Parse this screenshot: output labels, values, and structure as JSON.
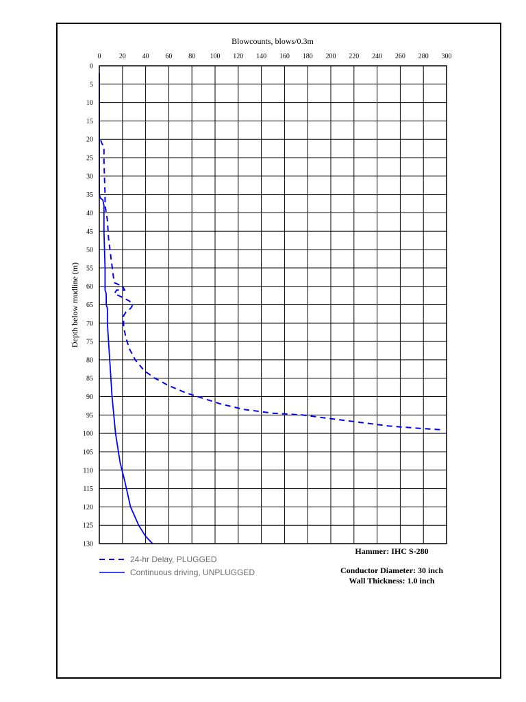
{
  "chart_data": {
    "type": "line",
    "xlabel": "Blowcounts, blows/0.3m",
    "ylabel": "Depth below mudline (m)",
    "xlim": [
      0,
      300
    ],
    "ylim": [
      0,
      130
    ],
    "y_inverted": true,
    "x_axis_position": "top",
    "grid": true,
    "x_ticks": [
      0,
      20,
      40,
      60,
      80,
      100,
      120,
      140,
      160,
      180,
      200,
      220,
      240,
      260,
      280,
      300
    ],
    "y_ticks": [
      0,
      5,
      10,
      15,
      20,
      25,
      30,
      35,
      40,
      45,
      50,
      55,
      60,
      65,
      70,
      75,
      80,
      85,
      90,
      95,
      100,
      105,
      110,
      115,
      120,
      125,
      130
    ],
    "legend_position": "bottom-left",
    "series": [
      {
        "name": "24-hr Delay, PLUGGED",
        "style": "dashed",
        "color": "#0000ff",
        "points": [
          [
            0,
            2
          ],
          [
            0,
            19
          ],
          [
            2,
            21
          ],
          [
            4,
            22
          ],
          [
            4,
            26
          ],
          [
            5,
            35
          ],
          [
            5,
            38
          ],
          [
            7,
            42
          ],
          [
            8,
            47
          ],
          [
            10,
            52
          ],
          [
            12,
            57
          ],
          [
            13,
            59
          ],
          [
            20,
            60
          ],
          [
            22,
            61
          ],
          [
            15,
            61
          ],
          [
            13,
            62
          ],
          [
            20,
            63
          ],
          [
            26,
            64
          ],
          [
            29,
            65
          ],
          [
            27,
            66
          ],
          [
            23,
            67
          ],
          [
            21,
            68
          ],
          [
            21,
            71
          ],
          [
            23,
            74
          ],
          [
            26,
            77
          ],
          [
            31,
            80
          ],
          [
            39,
            83
          ],
          [
            48,
            85
          ],
          [
            60,
            87
          ],
          [
            75,
            89
          ],
          [
            90,
            90.5
          ],
          [
            105,
            92
          ],
          [
            125,
            93.5
          ],
          [
            150,
            94.5
          ],
          [
            175,
            95
          ],
          [
            200,
            96
          ],
          [
            225,
            97
          ],
          [
            250,
            98
          ],
          [
            275,
            98.6
          ],
          [
            295,
            99
          ]
        ]
      },
      {
        "name": "Continuous driving, UNPLUGGED",
        "style": "solid",
        "color": "#0000ff",
        "points": [
          [
            0,
            2
          ],
          [
            0,
            35
          ],
          [
            1,
            36
          ],
          [
            3,
            36.5
          ],
          [
            4,
            38
          ],
          [
            4,
            45
          ],
          [
            5,
            55
          ],
          [
            5,
            61
          ],
          [
            6,
            62
          ],
          [
            6,
            65
          ],
          [
            7,
            66
          ],
          [
            7,
            70
          ],
          [
            9,
            80
          ],
          [
            11,
            90
          ],
          [
            14,
            100
          ],
          [
            18,
            108
          ],
          [
            22,
            113
          ],
          [
            27,
            120
          ],
          [
            34,
            125
          ],
          [
            40,
            128
          ],
          [
            46,
            130
          ]
        ]
      }
    ]
  },
  "annotations": {
    "hammer": "Hammer: IHC S-280",
    "conductor_diameter": "Conductor Diameter: 30 inch",
    "wall_thickness": "Wall Thickness: 1.0 inch"
  },
  "colors": {
    "line": "#0000ff",
    "grid": "#000000",
    "legend_text": "#6b6b6b"
  }
}
